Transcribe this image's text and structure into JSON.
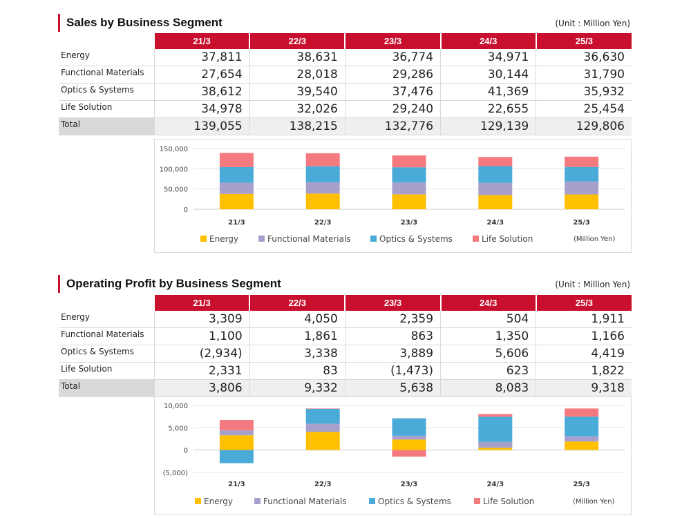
{
  "colors": {
    "energy": "#ffc000",
    "functional": "#a8a0cc",
    "optics": "#4aaad8",
    "life": "#f47a7f",
    "accent": "#c8102e"
  },
  "sales": {
    "title": "Sales by Business Segment",
    "unit": "(Unit : Million Yen)",
    "periods": [
      "21/3",
      "22/3",
      "23/3",
      "24/3",
      "25/3"
    ],
    "rows": [
      {
        "label": "Energy",
        "values": [
          "37,811",
          "38,631",
          "36,774",
          "34,971",
          "36,630"
        ]
      },
      {
        "label": "Functional Materials",
        "values": [
          "27,654",
          "28,018",
          "29,286",
          "30,144",
          "31,790"
        ]
      },
      {
        "label": "Optics & Systems",
        "values": [
          "38,612",
          "39,540",
          "37,476",
          "41,369",
          "35,932"
        ]
      },
      {
        "label": "Life Solution",
        "values": [
          "34,978",
          "32,026",
          "29,240",
          "22,655",
          "25,454"
        ]
      },
      {
        "label": "Total",
        "values": [
          "139,055",
          "138,215",
          "132,776",
          "129,139",
          "129,806"
        ]
      }
    ],
    "legend": [
      "Energy",
      "Functional Materials",
      "Optics & Systems",
      "Life Solution"
    ],
    "legend_note": "(Million Yen)"
  },
  "profit": {
    "title": "Operating Profit by Business Segment",
    "unit": "(Unit : Million Yen)",
    "periods": [
      "21/3",
      "22/3",
      "23/3",
      "24/3",
      "25/3"
    ],
    "rows": [
      {
        "label": "Energy",
        "values": [
          "3,309",
          "4,050",
          "2,359",
          "504",
          "1,911"
        ]
      },
      {
        "label": "Functional Materials",
        "values": [
          "1,100",
          "1,861",
          "863",
          "1,350",
          "1,166"
        ]
      },
      {
        "label": "Optics & Systems",
        "values": [
          "(2,934)",
          "3,338",
          "3,889",
          "5,606",
          "4,419"
        ]
      },
      {
        "label": "Life Solution",
        "values": [
          "2,331",
          "83",
          "(1,473)",
          "623",
          "1,822"
        ]
      },
      {
        "label": "Total",
        "values": [
          "3,806",
          "9,332",
          "5,638",
          "8,083",
          "9,318"
        ]
      }
    ],
    "legend": [
      "Energy",
      "Functional Materials",
      "Optics & Systems",
      "Life Solution"
    ],
    "legend_note": "(Million Yen)"
  },
  "chart_data": [
    {
      "type": "bar",
      "stacked": true,
      "title": "Sales by Business Segment",
      "categories": [
        "21/3",
        "22/3",
        "23/3",
        "24/3",
        "25/3"
      ],
      "series": [
        {
          "name": "Energy",
          "values": [
            37811,
            38631,
            36774,
            34971,
            36630
          ]
        },
        {
          "name": "Functional Materials",
          "values": [
            27654,
            28018,
            29286,
            30144,
            31790
          ]
        },
        {
          "name": "Optics & Systems",
          "values": [
            38612,
            39540,
            37476,
            41369,
            35932
          ]
        },
        {
          "name": "Life Solution",
          "values": [
            34978,
            32026,
            29240,
            22655,
            25454
          ]
        }
      ],
      "yticks": [
        0,
        50000,
        100000,
        150000
      ],
      "ytick_labels": [
        "0",
        "50,000",
        "100,000",
        "150,000"
      ],
      "ylim": [
        0,
        150000
      ],
      "ylabel": "(Million Yen)"
    },
    {
      "type": "bar",
      "stacked": true,
      "title": "Operating Profit by Business Segment",
      "categories": [
        "21/3",
        "22/3",
        "23/3",
        "24/3",
        "25/3"
      ],
      "series": [
        {
          "name": "Energy",
          "values": [
            3309,
            4050,
            2359,
            504,
            1911
          ]
        },
        {
          "name": "Functional Materials",
          "values": [
            1100,
            1861,
            863,
            1350,
            1166
          ]
        },
        {
          "name": "Optics & Systems",
          "values": [
            -2934,
            3338,
            3889,
            5606,
            4419
          ]
        },
        {
          "name": "Life Solution",
          "values": [
            2331,
            83,
            -1473,
            623,
            1822
          ]
        }
      ],
      "yticks": [
        -5000,
        0,
        5000,
        10000
      ],
      "ytick_labels": [
        "(5,000)",
        "0",
        "5,000",
        "10,000"
      ],
      "ylim": [
        -5000,
        10000
      ],
      "ylabel": "(Million Yen)"
    }
  ]
}
